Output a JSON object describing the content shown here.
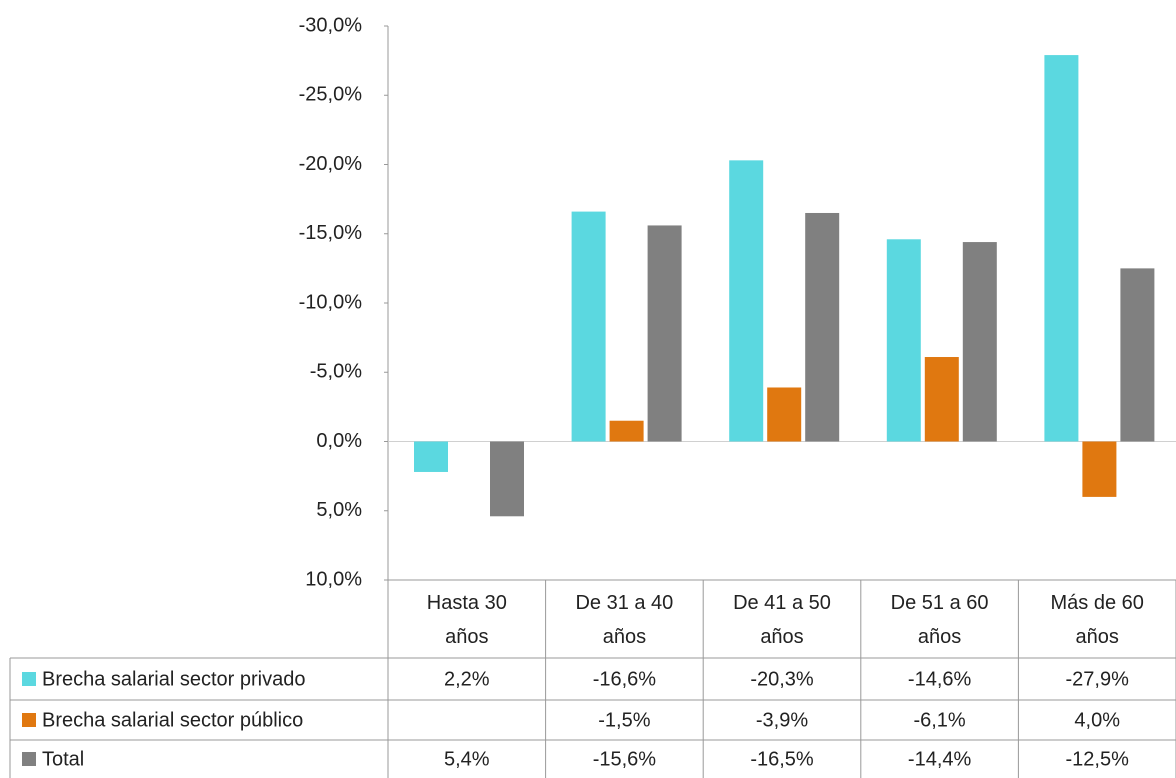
{
  "chart_data": {
    "type": "bar",
    "categories": [
      "Hasta 30 años",
      "De 31 a 40 años",
      "De 41 a 50 años",
      "De 51 a 60 años",
      "Más de 60 años"
    ],
    "series": [
      {
        "name": "Brecha salarial sector privado",
        "color": "#5bd8e0",
        "values": [
          2.2,
          -16.6,
          -20.3,
          -14.6,
          -27.9
        ],
        "value_labels": [
          "2,2%",
          "-16,6%",
          "-20,3%",
          "-14,6%",
          "-27,9%"
        ]
      },
      {
        "name": "Brecha salarial sector público",
        "color": "#e07810",
        "values": [
          null,
          -1.5,
          -3.9,
          -6.1,
          4.0
        ],
        "value_labels": [
          null,
          "-1,5%",
          "-3,9%",
          "-6,1%",
          "4,0%"
        ]
      },
      {
        "name": "Total",
        "color": "#808080",
        "values": [
          5.4,
          -15.6,
          -16.5,
          -14.4,
          -12.5
        ],
        "value_labels": [
          "5,4%",
          "-15,6%",
          "-16,5%",
          "-14,4%",
          "-12,5%"
        ]
      }
    ],
    "ylim": [
      10,
      -30
    ],
    "yticks": [
      {
        "value": -30,
        "label": "-30,0%"
      },
      {
        "value": -25,
        "label": "-25,0%"
      },
      {
        "value": -20,
        "label": "-20,0%"
      },
      {
        "value": -15,
        "label": "-15,0%"
      },
      {
        "value": -10,
        "label": "-10,0%"
      },
      {
        "value": -5,
        "label": "-5,0%"
      },
      {
        "value": 0,
        "label": "0,0%"
      },
      {
        "value": 5,
        "label": "5,0%"
      },
      {
        "value": 10,
        "label": "10,0%"
      }
    ],
    "grid": false
  }
}
